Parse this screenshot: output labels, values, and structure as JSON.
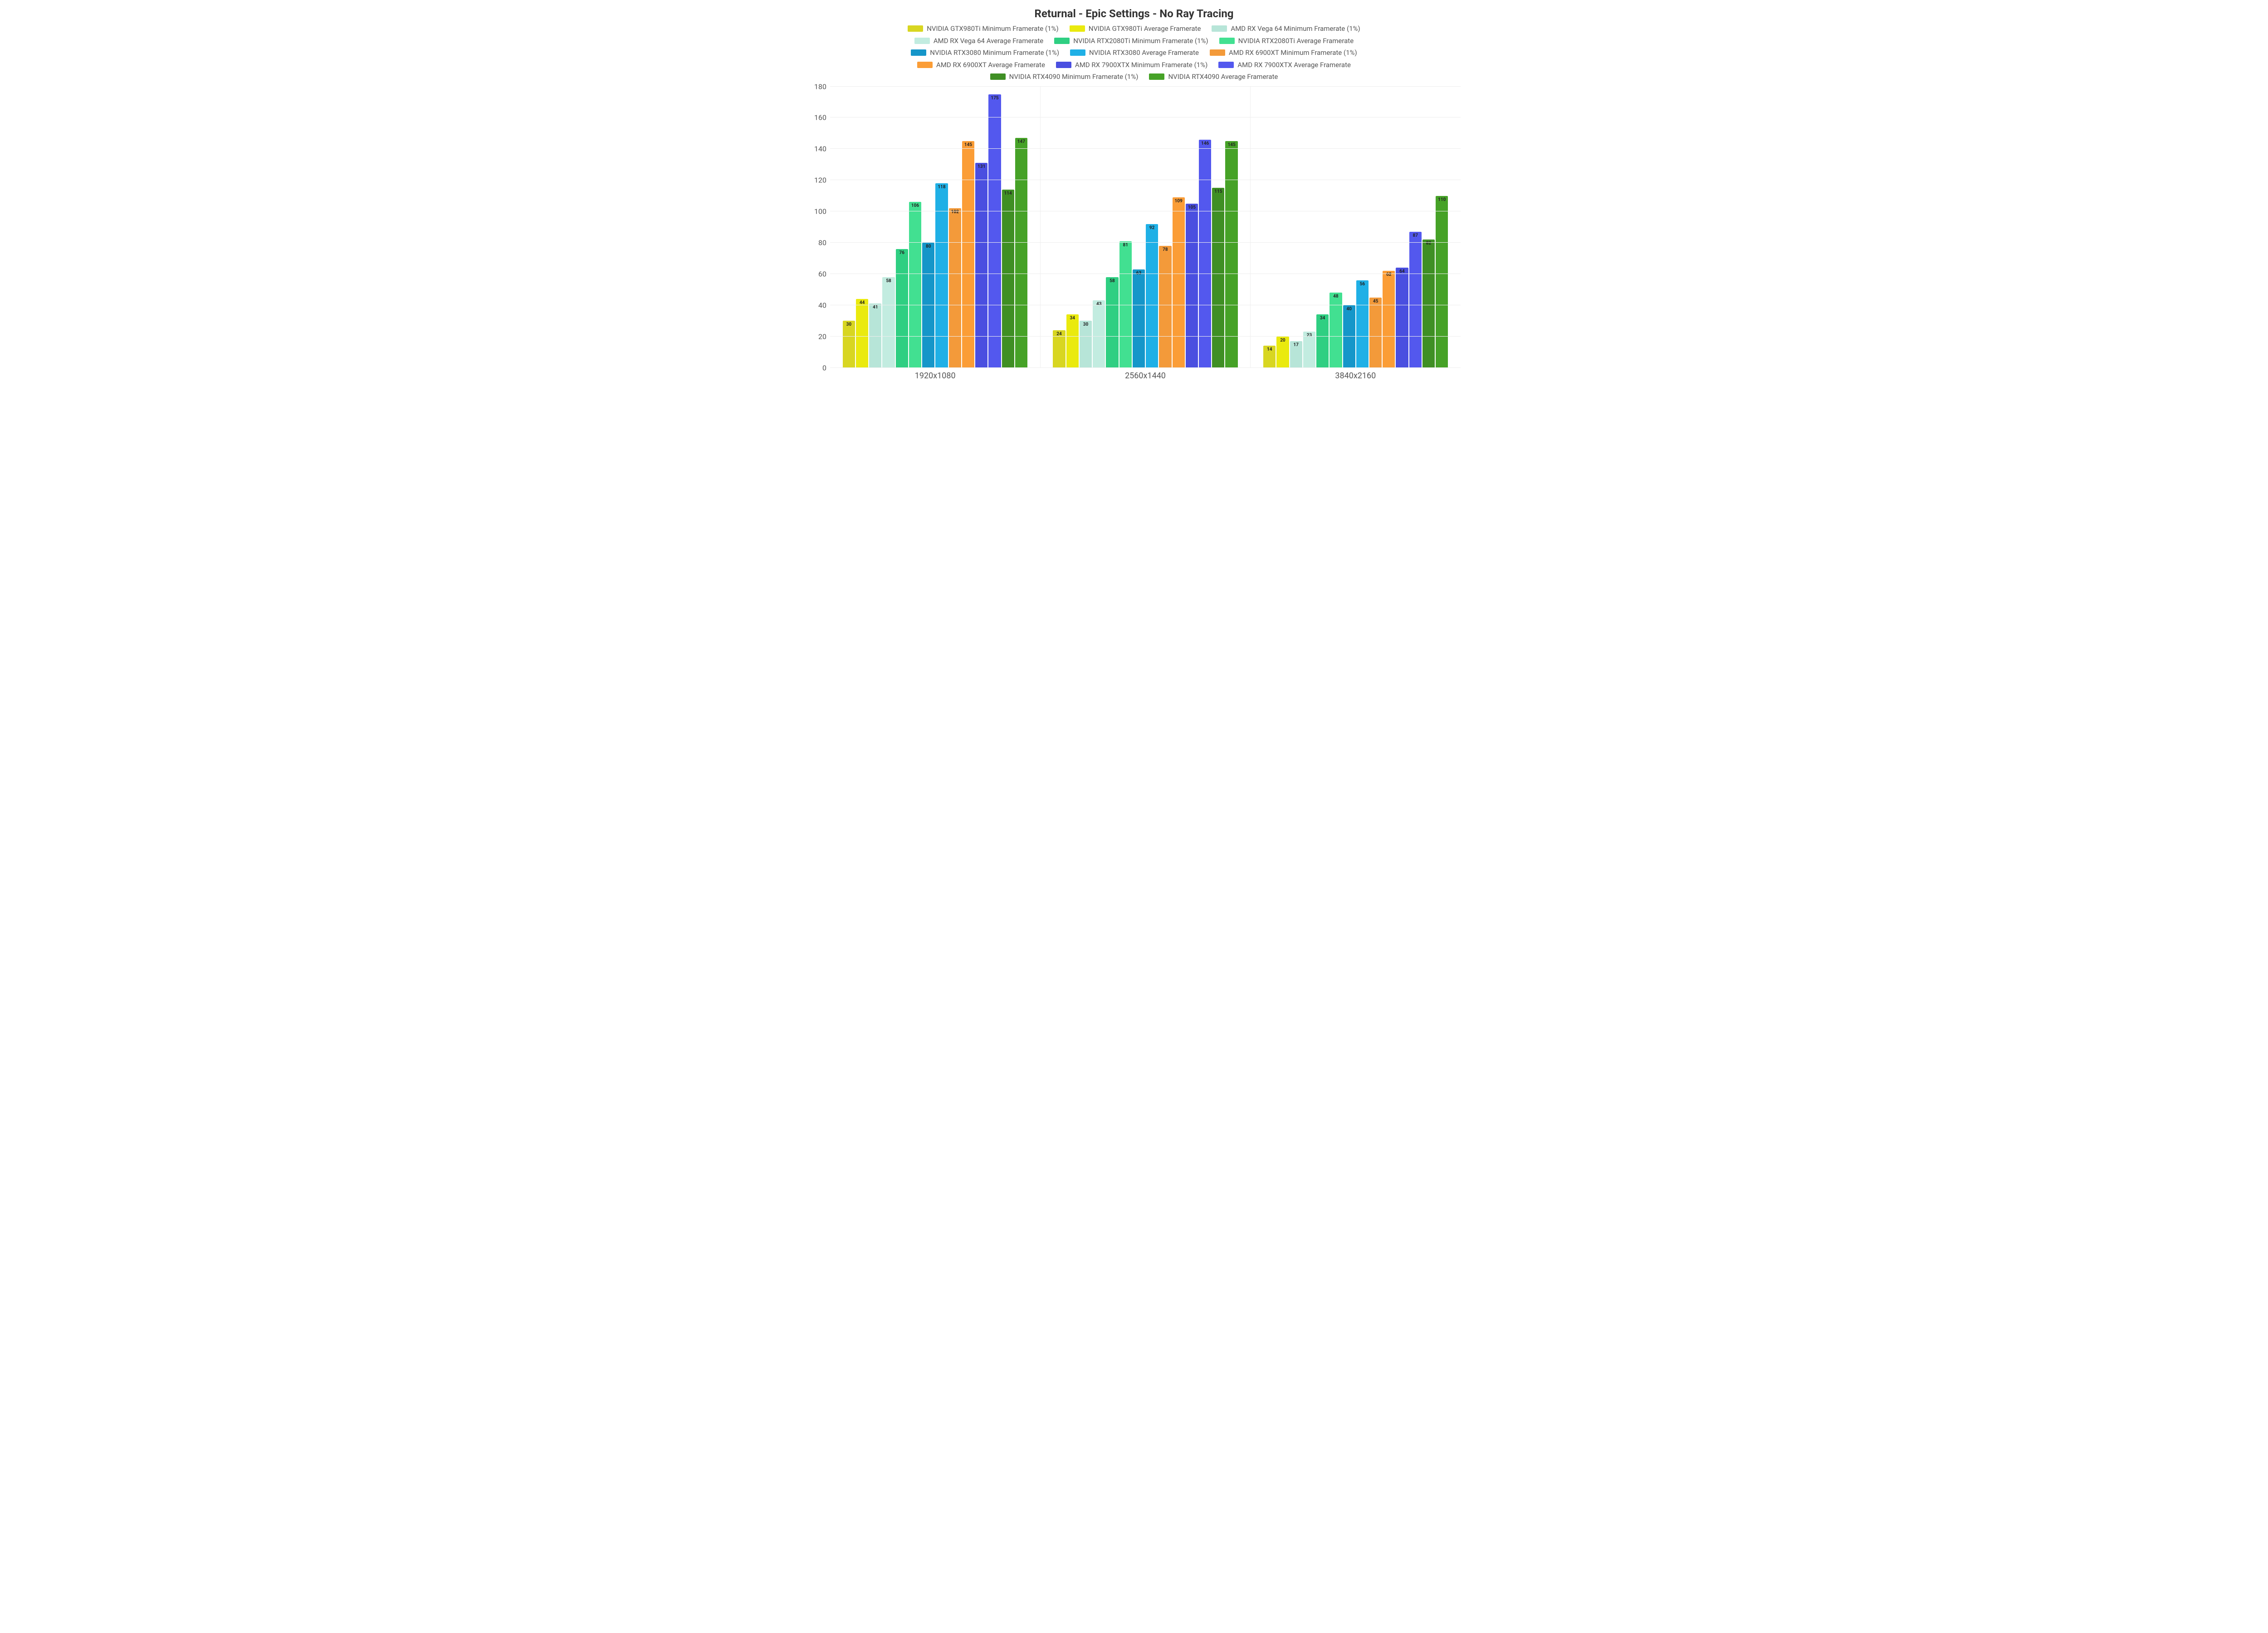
{
  "chart": {
    "type": "bar",
    "title": "Returnal - Epic Settings - No Ray Tracing",
    "title_fontsize": 24,
    "title_color": "#333333",
    "background_color": "#ffffff",
    "grid_color": "#eeeeee",
    "axis_label_color": "#555555",
    "axis_label_fontsize": 16,
    "category_label_fontsize": 18,
    "bar_label_fontsize": 10,
    "legend_fontsize": 15,
    "ylim": [
      0,
      180
    ],
    "ytick_step": 20,
    "categories": [
      "1920x1080",
      "2560x1440",
      "3840x2160"
    ],
    "series": [
      {
        "label": "NVIDIA GTX980Ti Minimum Framerate (1%)",
        "color": "#d8d621",
        "values": [
          30,
          24,
          14
        ]
      },
      {
        "label": "NVIDIA GTX980Ti Average Framerate",
        "color": "#eaea0e",
        "values": [
          44,
          34,
          20
        ]
      },
      {
        "label": "AMD RX Vega 64 Minimum Framerate (1%)",
        "color": "#b7e5d8",
        "values": [
          41,
          30,
          17
        ]
      },
      {
        "label": "AMD RX Vega 64 Average Framerate",
        "color": "#c2ece0",
        "values": [
          58,
          43,
          23
        ]
      },
      {
        "label": "NVIDIA RTX2080Ti Minimum Framerate (1%)",
        "color": "#2fcf82",
        "values": [
          76,
          58,
          34
        ]
      },
      {
        "label": "NVIDIA RTX2080Ti Average Framerate",
        "color": "#42e091",
        "values": [
          106,
          81,
          48
        ]
      },
      {
        "label": "NVIDIA RTX3080 Minimum Framerate (1%)",
        "color": "#1596c9",
        "values": [
          80,
          63,
          40
        ]
      },
      {
        "label": "NVIDIA RTX3080 Average Framerate",
        "color": "#1fb0e6",
        "values": [
          118,
          92,
          56
        ]
      },
      {
        "label": "AMD RX 6900XT Minimum Framerate (1%)",
        "color": "#f39a3a",
        "values": [
          102,
          78,
          45
        ]
      },
      {
        "label": "AMD RX 6900XT Average Framerate",
        "color": "#fb9d36",
        "values": [
          145,
          109,
          62
        ]
      },
      {
        "label": "AMD RX 7900XTX Minimum Framerate (1%)",
        "color": "#4a4fe0",
        "values": [
          131,
          105,
          64
        ]
      },
      {
        "label": "AMD RX 7900XTX Average Framerate",
        "color": "#5358ee",
        "values": [
          175,
          146,
          87
        ]
      },
      {
        "label": "NVIDIA RTX4090 Minimum Framerate (1%)",
        "color": "#3f8f24",
        "values": [
          114,
          115,
          82
        ]
      },
      {
        "label": "NVIDIA RTX4090 Average Framerate",
        "color": "#46a227",
        "values": [
          147,
          145,
          110
        ]
      }
    ]
  }
}
